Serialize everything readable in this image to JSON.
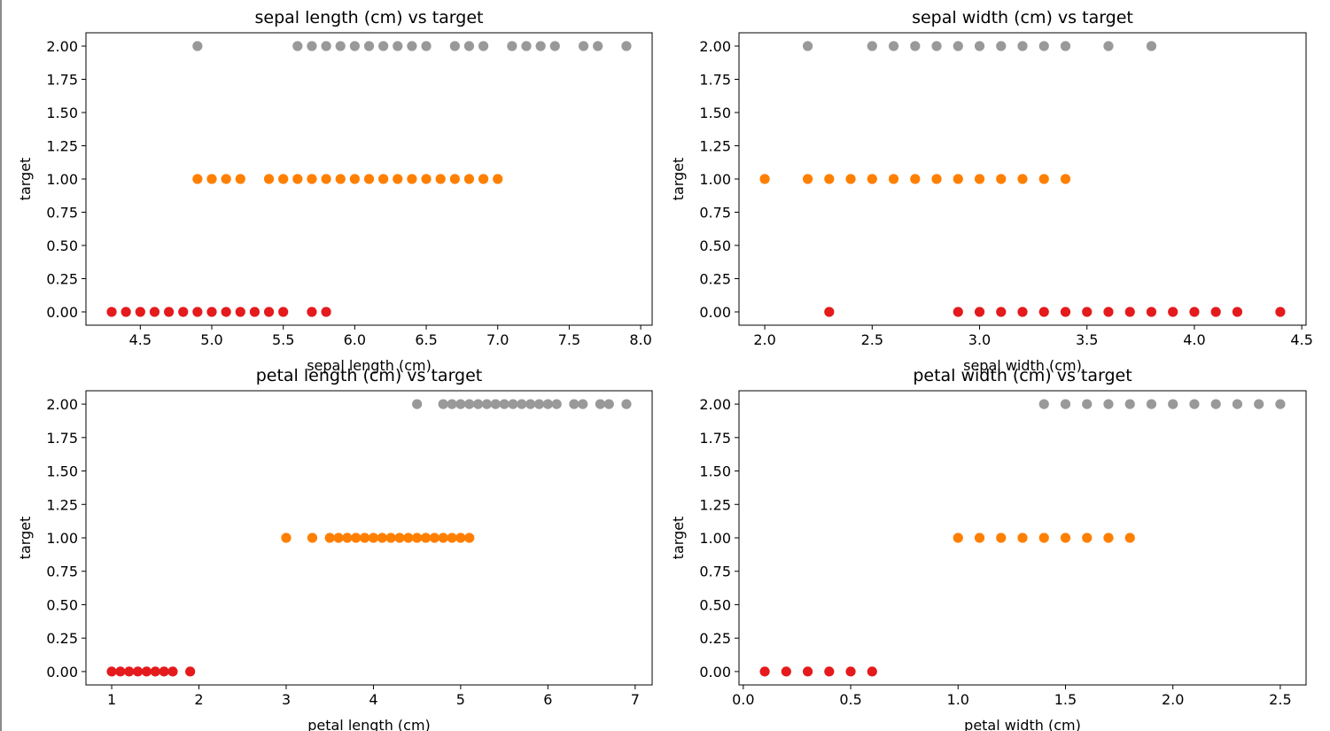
{
  "colors": {
    "class_0": "#e41a1c",
    "class_1": "#ff7f00",
    "class_2": "#999999"
  },
  "chart_data": [
    {
      "type": "scatter",
      "title": "sepal length (cm) vs target",
      "xlabel": "sepal length (cm)",
      "ylabel": "target",
      "xlim": [
        4.12,
        8.08
      ],
      "ylim": [
        -0.1,
        2.1
      ],
      "xticks": [
        4.5,
        5.0,
        5.5,
        6.0,
        6.5,
        7.0,
        7.5,
        8.0
      ],
      "xtick_labels": [
        "4.5",
        "5.0",
        "5.5",
        "6.0",
        "6.5",
        "7.0",
        "7.5",
        "8.0"
      ],
      "yticks": [
        0,
        0.25,
        0.5,
        0.75,
        1.0,
        1.25,
        1.5,
        1.75,
        2.0
      ],
      "ytick_labels": [
        "0.00",
        "0.25",
        "0.50",
        "0.75",
        "1.00",
        "1.25",
        "1.50",
        "1.75",
        "2.00"
      ],
      "series": [
        {
          "target": 0,
          "color": "#e41a1c",
          "x": [
            4.3,
            4.4,
            4.5,
            4.6,
            4.7,
            4.8,
            4.9,
            5.0,
            5.1,
            5.2,
            5.3,
            5.4,
            5.5,
            5.7,
            5.8
          ]
        },
        {
          "target": 1,
          "color": "#ff7f00",
          "x": [
            4.9,
            5.0,
            5.1,
            5.2,
            5.4,
            5.5,
            5.6,
            5.7,
            5.8,
            5.9,
            6.0,
            6.1,
            6.2,
            6.3,
            6.4,
            6.5,
            6.6,
            6.7,
            6.8,
            6.9,
            7.0
          ]
        },
        {
          "target": 2,
          "color": "#999999",
          "x": [
            4.9,
            5.6,
            5.7,
            5.8,
            5.9,
            6.0,
            6.1,
            6.2,
            6.3,
            6.4,
            6.5,
            6.7,
            6.8,
            6.9,
            7.1,
            7.2,
            7.3,
            7.4,
            7.6,
            7.7,
            7.9
          ]
        }
      ]
    },
    {
      "type": "scatter",
      "title": "sepal width (cm) vs target",
      "xlabel": "sepal width (cm)",
      "ylabel": "target",
      "xlim": [
        1.88,
        4.52
      ],
      "ylim": [
        -0.1,
        2.1
      ],
      "xticks": [
        2.0,
        2.5,
        3.0,
        3.5,
        4.0,
        4.5
      ],
      "xtick_labels": [
        "2.0",
        "2.5",
        "3.0",
        "3.5",
        "4.0",
        "4.5"
      ],
      "yticks": [
        0,
        0.25,
        0.5,
        0.75,
        1.0,
        1.25,
        1.5,
        1.75,
        2.0
      ],
      "ytick_labels": [
        "0.00",
        "0.25",
        "0.50",
        "0.75",
        "1.00",
        "1.25",
        "1.50",
        "1.75",
        "2.00"
      ],
      "series": [
        {
          "target": 0,
          "color": "#e41a1c",
          "x": [
            2.3,
            2.9,
            3.0,
            3.1,
            3.2,
            3.3,
            3.4,
            3.5,
            3.6,
            3.7,
            3.8,
            3.9,
            4.0,
            4.1,
            4.2,
            4.4
          ]
        },
        {
          "target": 1,
          "color": "#ff7f00",
          "x": [
            2.0,
            2.2,
            2.3,
            2.4,
            2.5,
            2.6,
            2.7,
            2.8,
            2.9,
            3.0,
            3.1,
            3.2,
            3.3,
            3.4
          ]
        },
        {
          "target": 2,
          "color": "#999999",
          "x": [
            2.2,
            2.5,
            2.6,
            2.7,
            2.8,
            2.9,
            3.0,
            3.1,
            3.2,
            3.3,
            3.4,
            3.6,
            3.8
          ]
        }
      ]
    },
    {
      "type": "scatter",
      "title": "petal length (cm) vs target",
      "xlabel": "petal length (cm)",
      "ylabel": "target",
      "xlim": [
        0.705,
        7.195
      ],
      "ylim": [
        -0.1,
        2.1
      ],
      "xticks": [
        1,
        2,
        3,
        4,
        5,
        6,
        7
      ],
      "xtick_labels": [
        "1",
        "2",
        "3",
        "4",
        "5",
        "6",
        "7"
      ],
      "yticks": [
        0,
        0.25,
        0.5,
        0.75,
        1.0,
        1.25,
        1.5,
        1.75,
        2.0
      ],
      "ytick_labels": [
        "0.00",
        "0.25",
        "0.50",
        "0.75",
        "1.00",
        "1.25",
        "1.50",
        "1.75",
        "2.00"
      ],
      "series": [
        {
          "target": 0,
          "color": "#e41a1c",
          "x": [
            1.0,
            1.1,
            1.2,
            1.3,
            1.4,
            1.5,
            1.6,
            1.7,
            1.9
          ]
        },
        {
          "target": 1,
          "color": "#ff7f00",
          "x": [
            3.0,
            3.3,
            3.5,
            3.6,
            3.7,
            3.8,
            3.9,
            4.0,
            4.1,
            4.2,
            4.3,
            4.4,
            4.5,
            4.6,
            4.7,
            4.8,
            4.9,
            5.0,
            5.1
          ]
        },
        {
          "target": 2,
          "color": "#999999",
          "x": [
            4.5,
            4.8,
            4.9,
            5.0,
            5.1,
            5.2,
            5.3,
            5.4,
            5.5,
            5.6,
            5.7,
            5.8,
            5.9,
            6.0,
            6.1,
            6.3,
            6.4,
            6.6,
            6.7,
            6.9
          ]
        }
      ]
    },
    {
      "type": "scatter",
      "title": "petal width (cm) vs target",
      "xlabel": "petal width (cm)",
      "ylabel": "target",
      "xlim": [
        -0.02,
        2.62
      ],
      "ylim": [
        -0.1,
        2.1
      ],
      "xticks": [
        0.0,
        0.5,
        1.0,
        1.5,
        2.0,
        2.5
      ],
      "xtick_labels": [
        "0.0",
        "0.5",
        "1.0",
        "1.5",
        "2.0",
        "2.5"
      ],
      "yticks": [
        0,
        0.25,
        0.5,
        0.75,
        1.0,
        1.25,
        1.5,
        1.75,
        2.0
      ],
      "ytick_labels": [
        "0.00",
        "0.25",
        "0.50",
        "0.75",
        "1.00",
        "1.25",
        "1.50",
        "1.75",
        "2.00"
      ],
      "series": [
        {
          "target": 0,
          "color": "#e41a1c",
          "x": [
            0.1,
            0.2,
            0.3,
            0.4,
            0.5,
            0.6
          ]
        },
        {
          "target": 1,
          "color": "#ff7f00",
          "x": [
            1.0,
            1.1,
            1.2,
            1.3,
            1.4,
            1.5,
            1.6,
            1.7,
            1.8
          ]
        },
        {
          "target": 2,
          "color": "#999999",
          "x": [
            1.4,
            1.5,
            1.6,
            1.7,
            1.8,
            1.9,
            2.0,
            2.1,
            2.2,
            2.3,
            2.4,
            2.5
          ]
        }
      ]
    }
  ]
}
